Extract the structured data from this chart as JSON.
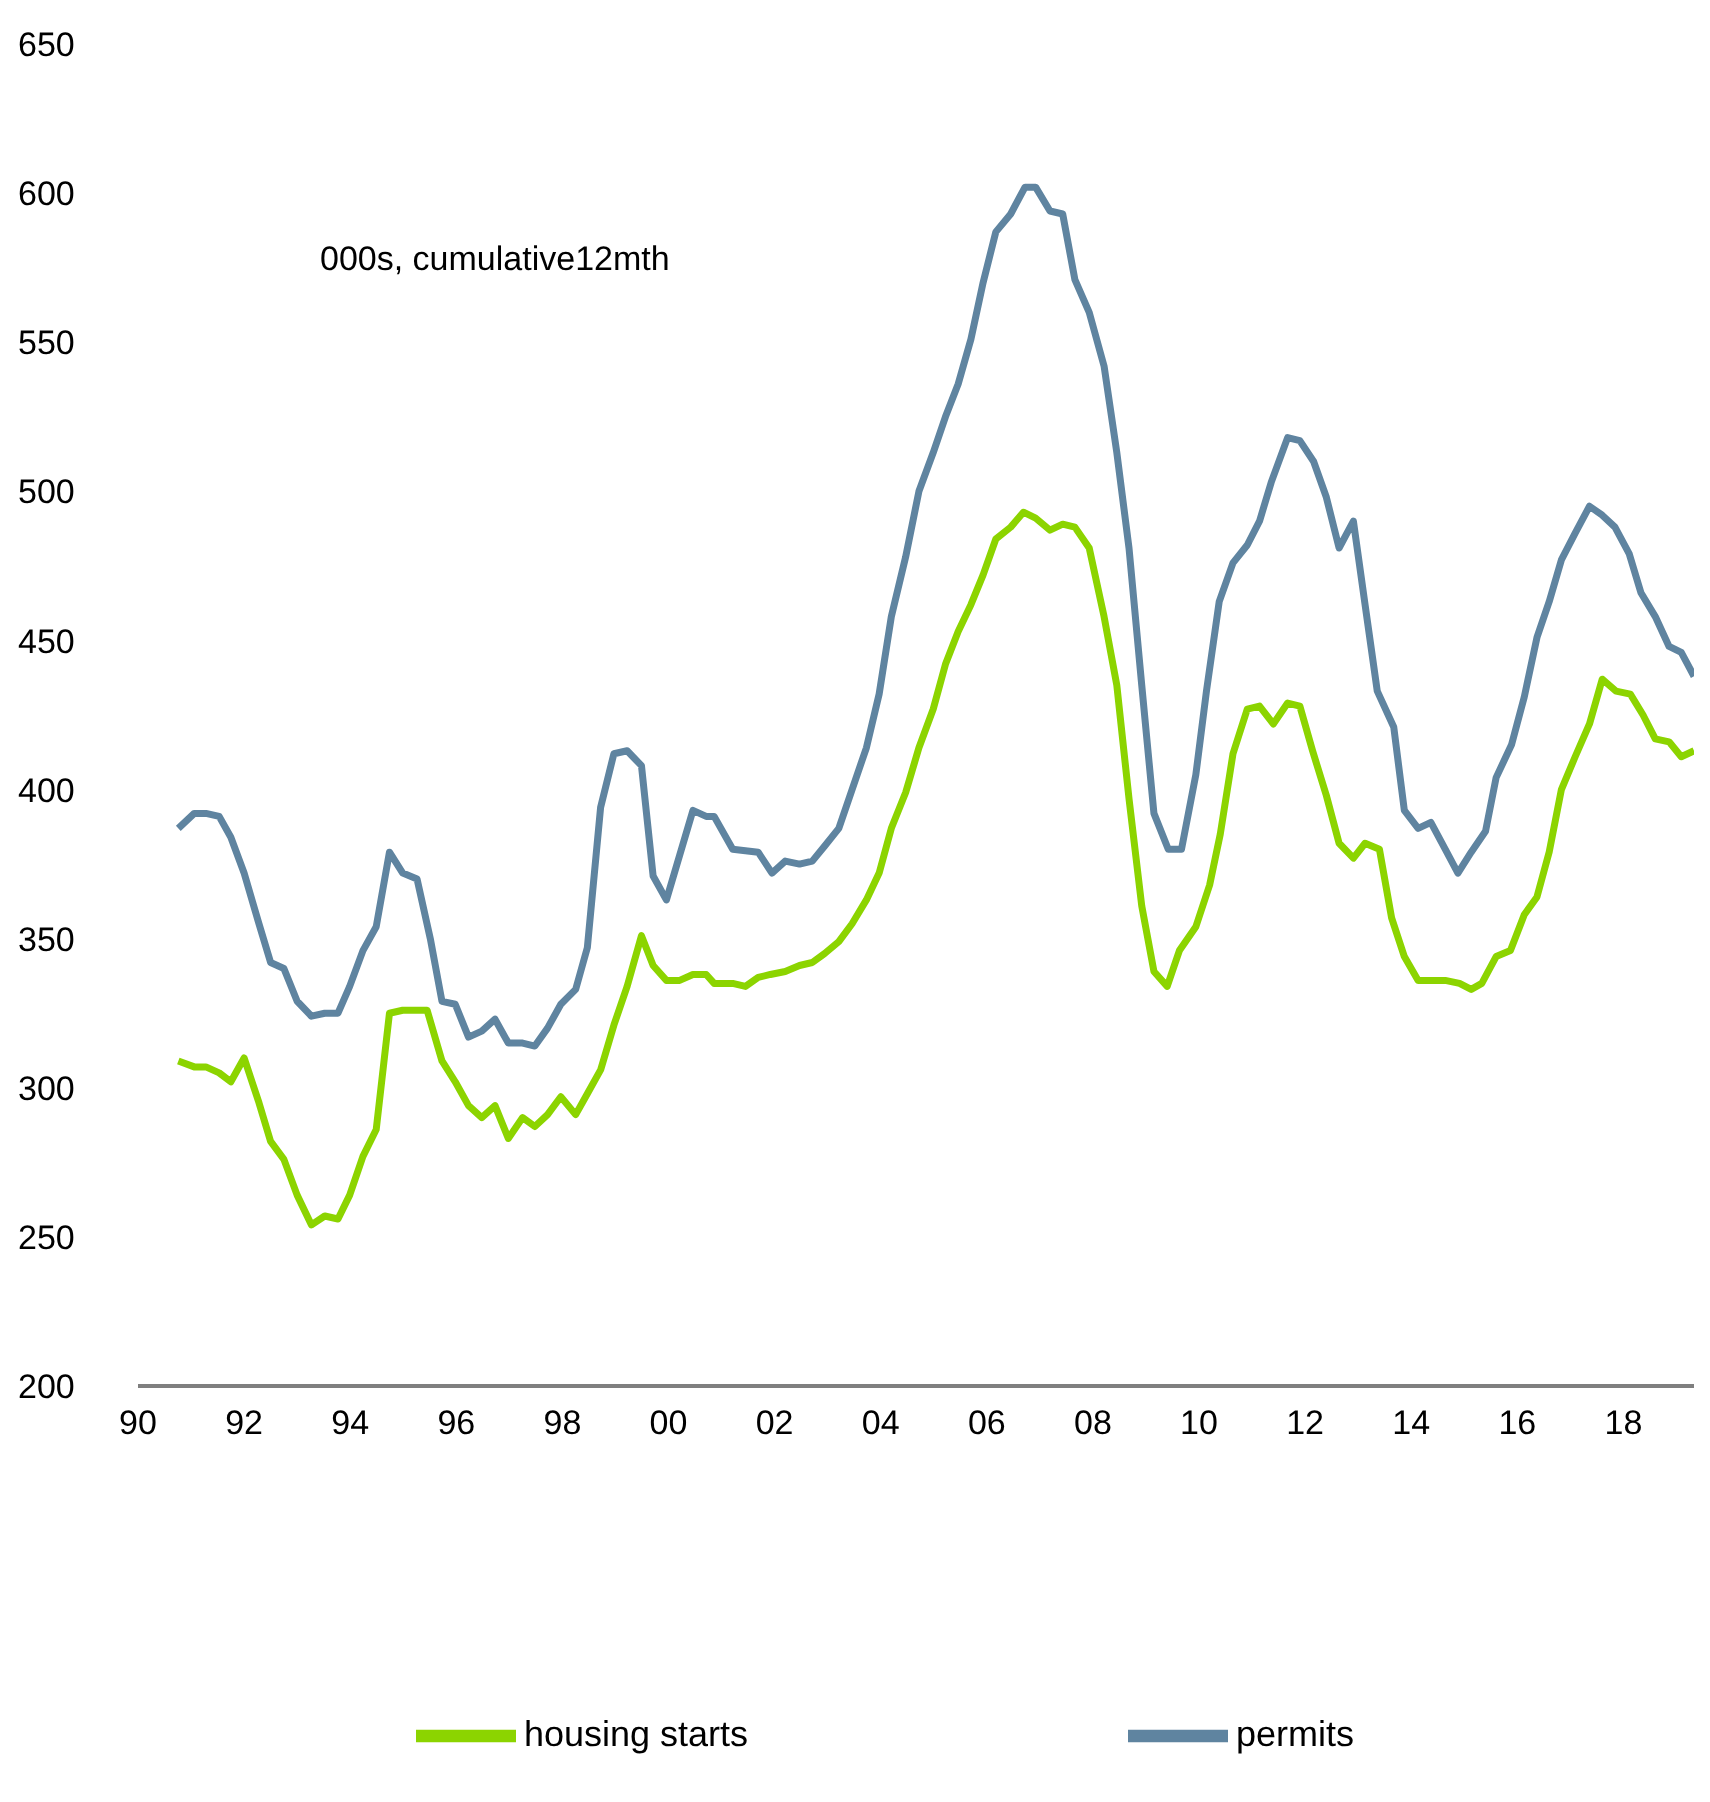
{
  "chart_data": {
    "type": "line",
    "annotations": [
      "000s, cumulative12mth"
    ],
    "xlim": [
      1990,
      2019.33
    ],
    "xticks": [
      {
        "value": 1990,
        "label": "90"
      },
      {
        "value": 1992,
        "label": "92"
      },
      {
        "value": 1994,
        "label": "94"
      },
      {
        "value": 1996,
        "label": "96"
      },
      {
        "value": 1998,
        "label": "98"
      },
      {
        "value": 2000,
        "label": "00"
      },
      {
        "value": 2002,
        "label": "02"
      },
      {
        "value": 2004,
        "label": "04"
      },
      {
        "value": 2006,
        "label": "06"
      },
      {
        "value": 2008,
        "label": "08"
      },
      {
        "value": 2010,
        "label": "10"
      },
      {
        "value": 2012,
        "label": "12"
      },
      {
        "value": 2014,
        "label": "14"
      },
      {
        "value": 2016,
        "label": "16"
      },
      {
        "value": 2018,
        "label": "18"
      }
    ],
    "ylim": [
      200,
      650
    ],
    "yticks": [
      200,
      250,
      300,
      350,
      400,
      450,
      500,
      550,
      600,
      650
    ],
    "grid": false,
    "legend": "bottom",
    "marker": "none",
    "line_style": "solid",
    "series": [
      {
        "name": "housing starts",
        "color": "#8cd400",
        "x": [
          1990.76,
          1991.06,
          1991.28,
          1991.53,
          1991.75,
          1992.0,
          1992.28,
          1992.5,
          1992.75,
          1993.0,
          1993.27,
          1993.52,
          1993.77,
          1993.99,
          1994.24,
          1994.49,
          1994.74,
          1994.99,
          1995.26,
          1995.45,
          1995.73,
          1995.98,
          1996.23,
          1996.48,
          1996.73,
          1996.98,
          1997.25,
          1997.48,
          1997.72,
          1997.97,
          1998.25,
          1998.47,
          1998.72,
          1998.97,
          1999.22,
          1999.49,
          1999.71,
          1999.96,
          2000.21,
          2000.46,
          2000.71,
          2000.86,
          2001.21,
          2001.45,
          2001.69,
          2001.92,
          2002.2,
          2002.47,
          2002.71,
          2002.94,
          2003.21,
          2003.46,
          2003.73,
          2003.97,
          2004.2,
          2004.47,
          2004.72,
          2004.99,
          2005.22,
          2005.46,
          2005.7,
          2005.93,
          2006.17,
          2006.45,
          2006.69,
          2006.92,
          2007.19,
          2007.43,
          2007.66,
          2007.93,
          2008.21,
          2008.45,
          2008.68,
          2008.92,
          2009.15,
          2009.4,
          2009.63,
          2009.94,
          2010.2,
          2010.4,
          2010.64,
          2010.91,
          2011.14,
          2011.4,
          2011.67,
          2011.9,
          2012.14,
          2012.4,
          2012.64,
          2012.91,
          2013.13,
          2013.4,
          2013.63,
          2013.87,
          2014.13,
          2014.37,
          2014.64,
          2014.91,
          2015.13,
          2015.33,
          2015.6,
          2015.87,
          2016.13,
          2016.37,
          2016.6,
          2016.83,
          2017.09,
          2017.36,
          2017.6,
          2017.86,
          2018.13,
          2018.37,
          2018.6,
          2018.86,
          2019.09,
          2019.33
        ],
        "values": [
          309,
          307,
          307,
          305,
          302,
          310,
          295,
          282,
          276,
          264,
          254,
          257,
          256,
          264,
          277,
          286,
          325,
          326,
          326,
          326,
          309,
          302,
          294,
          290,
          294,
          283,
          290,
          287,
          291,
          297,
          291,
          298,
          306,
          321,
          334,
          351,
          341,
          336,
          336,
          338,
          338,
          335,
          335,
          334,
          337,
          338,
          339,
          341,
          342,
          345,
          349,
          355,
          363,
          372,
          387,
          399,
          414,
          427,
          442,
          453,
          462,
          472,
          484,
          488,
          493,
          491,
          487,
          489,
          488,
          481,
          458,
          435,
          397,
          361,
          339,
          334,
          346,
          354,
          368,
          385,
          412,
          427,
          428,
          422,
          429,
          428,
          413,
          398,
          382,
          377,
          382,
          380,
          357,
          344,
          336,
          336,
          336,
          335,
          333,
          335,
          344,
          346,
          358,
          364,
          379,
          400,
          411,
          422,
          437,
          433,
          432,
          425,
          417,
          416,
          411,
          413
        ]
      },
      {
        "name": "permits",
        "color": "#5f84a0",
        "x": [
          1990.76,
          1991.06,
          1991.28,
          1991.53,
          1991.75,
          1992.0,
          1992.28,
          1992.5,
          1992.75,
          1993.0,
          1993.27,
          1993.52,
          1993.77,
          1993.99,
          1994.24,
          1994.49,
          1994.74,
          1994.99,
          1995.26,
          1995.51,
          1995.73,
          1995.98,
          1996.23,
          1996.48,
          1996.73,
          1996.98,
          1997.25,
          1997.48,
          1997.72,
          1997.97,
          1998.25,
          1998.47,
          1998.72,
          1998.97,
          1999.22,
          1999.49,
          1999.71,
          1999.96,
          2000.21,
          2000.46,
          2000.71,
          2000.86,
          2001.21,
          2001.69,
          2001.95,
          2002.2,
          2002.47,
          2002.71,
          2002.94,
          2003.21,
          2003.46,
          2003.73,
          2003.97,
          2004.2,
          2004.47,
          2004.72,
          2004.99,
          2005.22,
          2005.46,
          2005.7,
          2005.93,
          2006.17,
          2006.45,
          2006.72,
          2006.92,
          2007.19,
          2007.43,
          2007.66,
          2007.93,
          2008.21,
          2008.45,
          2008.68,
          2008.92,
          2009.15,
          2009.42,
          2009.67,
          2009.94,
          2010.14,
          2010.38,
          2010.64,
          2010.91,
          2011.14,
          2011.36,
          2011.67,
          2011.9,
          2012.16,
          2012.4,
          2012.64,
          2012.91,
          2013.13,
          2013.36,
          2013.67,
          2013.87,
          2014.13,
          2014.37,
          2014.64,
          2014.88,
          2015.13,
          2015.4,
          2015.6,
          2015.89,
          2016.13,
          2016.37,
          2016.6,
          2016.83,
          2017.09,
          2017.36,
          2017.6,
          2017.84,
          2018.11,
          2018.33,
          2018.6,
          2018.86,
          2019.09,
          2019.33
        ],
        "values": [
          387,
          392,
          392,
          391,
          384,
          372,
          355,
          342,
          340,
          329,
          324,
          325,
          325,
          334,
          346,
          354,
          379,
          372,
          370,
          350,
          329,
          328,
          317,
          319,
          323,
          315,
          315,
          314,
          320,
          328,
          333,
          347,
          394,
          412,
          413,
          408,
          371,
          363,
          378,
          393,
          391,
          391,
          380,
          379,
          372,
          376,
          375,
          376,
          381,
          387,
          400,
          414,
          432,
          458,
          478,
          500,
          513,
          525,
          536,
          551,
          570,
          587,
          593,
          602,
          602,
          594,
          593,
          571,
          560,
          542,
          513,
          481,
          435,
          392,
          380,
          380,
          405,
          433,
          463,
          476,
          482,
          490,
          503,
          518,
          517,
          510,
          498,
          481,
          490,
          462,
          433,
          421,
          393,
          387,
          389,
          380,
          372,
          379,
          386,
          404,
          415,
          431,
          451,
          463,
          477,
          486,
          495,
          492,
          488,
          479,
          466,
          458,
          448,
          446,
          438
        ]
      }
    ]
  }
}
